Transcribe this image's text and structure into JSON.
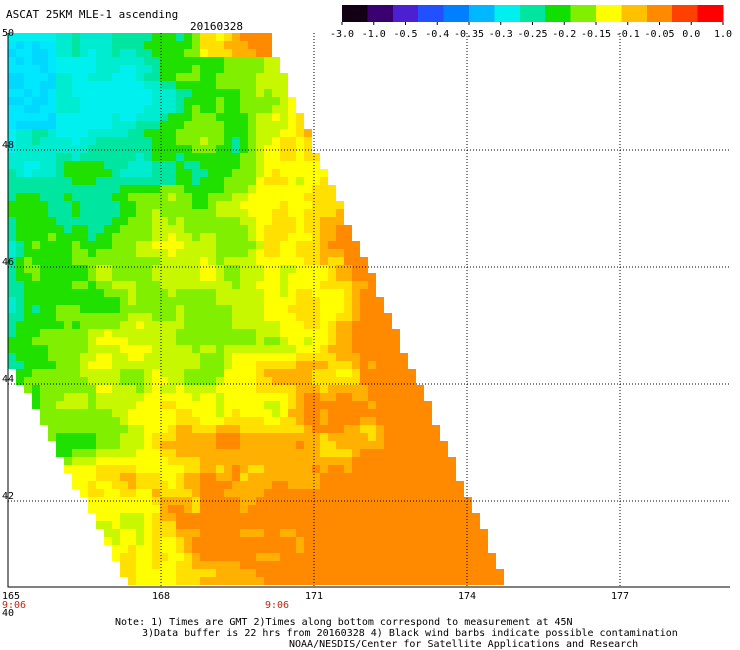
{
  "header": {
    "title": "ASCAT 25KM MLE-1 ascending",
    "date": "20160328"
  },
  "colorbar": {
    "labels": [
      "-3.0",
      "-1.0",
      "-0.5",
      "-0.4",
      "-0.35",
      "-0.3",
      "-0.25",
      "-0.2",
      "-0.15",
      "-0.1",
      "-0.05",
      "0.0",
      "1.0"
    ],
    "colors": [
      "#140014",
      "#3a0070",
      "#4a20d0",
      "#2050ff",
      "#0080ff",
      "#00b8ff",
      "#00f0f0",
      "#00e6a0",
      "#10e000",
      "#80f000",
      "#ffff00",
      "#ffc000",
      "#ff8a00",
      "#ff4000",
      "#ff0000"
    ]
  },
  "map": {
    "x_ticks": [
      "165",
      "168",
      "171",
      "174",
      "177"
    ],
    "y_ticks": [
      "50",
      "48",
      "46",
      "44",
      "42",
      "40"
    ],
    "time_labels": [
      "9:06",
      "9:06"
    ]
  },
  "notes": {
    "line1": "Note: 1) Times are GMT 2)Times along bottom correspond to measurement at 45N",
    "line2": "3)Data buffer is 22 hrs from 20160328 4) Black wind barbs indicate possible contamination",
    "line3": "NOAA/NESDIS/Center for Satellite Applications and Research"
  }
}
